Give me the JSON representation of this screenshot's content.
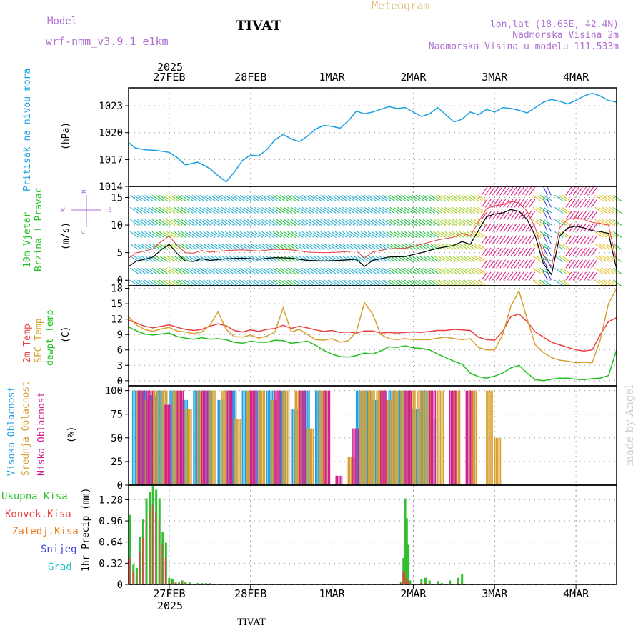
{
  "header": {
    "model_label": "Model",
    "model_name": "wrf-nmm_v3.9.1 e1km",
    "station": "TIVAT",
    "meteogram": "Meteogram",
    "lonlat": "lon,lat (18.65E, 42.4N)",
    "elevation": "Nadmorska Visina 2m",
    "model_elevation": "Nadmorska Visina u modelu 111.533m",
    "top_year": "2025",
    "bottom_year": "2025",
    "footer_station": "TIVAT",
    "credit": "made by Angel"
  },
  "colors": {
    "pressure": "#1aa0e0",
    "temp2m": "#e84040",
    "sfc": "#d8a030",
    "dewpt": "#20c020",
    "high_cloud": "#20a0e0",
    "mid_cloud": "#d8a030",
    "low_cloud": "#d02090",
    "precip_total": "#30c030",
    "precip_conv": "#e84040",
    "precip_frz": "#f08020",
    "snow": "#4040e0",
    "hail": "#20c0c0",
    "model": "#b070d0",
    "meteogram": "#e0c080"
  },
  "chart_data": [
    {
      "type": "line",
      "panel": "pressure",
      "ylabel_side": "Pritisak na nivou mora",
      "ylabel": "(hPa)",
      "ylim": [
        1014,
        1025
      ],
      "yticks": [
        1014,
        1017,
        1020,
        1023
      ],
      "x_labels": [
        "27FEB",
        "28FEB",
        "1MAR",
        "2MAR",
        "3MAR",
        "4MAR"
      ],
      "x_days": [
        0,
        1,
        2,
        3,
        4,
        5
      ],
      "xlim": [
        -0.5,
        5.5
      ],
      "x": [
        -0.5,
        -0.42,
        -0.3,
        -0.15,
        0.0,
        0.1,
        0.2,
        0.35,
        0.5,
        0.6,
        0.7,
        0.8,
        0.9,
        1.0,
        1.1,
        1.2,
        1.3,
        1.4,
        1.5,
        1.6,
        1.7,
        1.8,
        1.9,
        2.0,
        2.1,
        2.2,
        2.3,
        2.4,
        2.5,
        2.6,
        2.7,
        2.8,
        2.9,
        3.0,
        3.1,
        3.2,
        3.3,
        3.4,
        3.5,
        3.6,
        3.7,
        3.8,
        3.9,
        4.0,
        4.1,
        4.2,
        4.3,
        4.4,
        4.5,
        4.6,
        4.7,
        4.8,
        4.9,
        5.0,
        5.1,
        5.2,
        5.3,
        5.4,
        5.5
      ],
      "values": [
        1018.9,
        1018.3,
        1018.1,
        1018.0,
        1017.8,
        1017.2,
        1016.4,
        1016.7,
        1016.0,
        1015.2,
        1014.5,
        1015.6,
        1016.9,
        1017.5,
        1017.4,
        1018.1,
        1019.2,
        1019.8,
        1019.3,
        1019.0,
        1019.6,
        1020.4,
        1020.8,
        1020.7,
        1020.5,
        1021.3,
        1022.4,
        1022.1,
        1022.3,
        1022.6,
        1022.9,
        1022.7,
        1022.8,
        1022.3,
        1021.8,
        1022.1,
        1022.8,
        1022.0,
        1021.2,
        1021.5,
        1022.3,
        1022.0,
        1022.6,
        1022.3,
        1022.8,
        1022.7,
        1022.5,
        1022.2,
        1022.8,
        1023.4,
        1023.7,
        1023.5,
        1023.2,
        1023.6,
        1024.1,
        1024.4,
        1024.1,
        1023.6,
        1023.4
      ]
    },
    {
      "type": "line",
      "panel": "wind",
      "ylabel_side": [
        "10m Vjetar",
        "Brzina i Pravac"
      ],
      "ylabel": "(m/s)",
      "compass": [
        "N",
        "E",
        "S",
        "W"
      ],
      "ylim": [
        -1,
        17
      ],
      "yticks": [
        0,
        5,
        10,
        15
      ],
      "xlim": [
        -0.5,
        5.5
      ],
      "x": [
        -0.5,
        -0.4,
        -0.3,
        -0.2,
        -0.1,
        0.0,
        0.1,
        0.2,
        0.3,
        0.4,
        0.5,
        0.7,
        0.9,
        1.1,
        1.3,
        1.5,
        1.7,
        1.9,
        2.1,
        2.3,
        2.4,
        2.5,
        2.7,
        2.9,
        3.1,
        3.3,
        3.5,
        3.6,
        3.7,
        3.8,
        3.9,
        4.0,
        4.1,
        4.2,
        4.3,
        4.4,
        4.5,
        4.6,
        4.7,
        4.8,
        4.9,
        5.0,
        5.1,
        5.2,
        5.3,
        5.4,
        5.5
      ],
      "values": [
        2.5,
        3.5,
        3.8,
        4.2,
        5.5,
        6.5,
        4.8,
        3.5,
        3.4,
        3.9,
        3.6,
        3.9,
        4.0,
        3.8,
        4.1,
        4.0,
        3.6,
        3.5,
        3.6,
        3.8,
        2.5,
        3.6,
        4.2,
        4.3,
        5.0,
        5.8,
        6.3,
        7.0,
        6.5,
        9.0,
        11.5,
        12.0,
        12.2,
        12.8,
        12.5,
        11.0,
        8.0,
        3.0,
        1.0,
        8.0,
        9.5,
        9.8,
        9.5,
        9.0,
        8.8,
        8.5,
        2.0
      ]
    },
    {
      "type": "line",
      "panel": "temperature",
      "ylabel_side": [
        "2m Temp",
        "SFC Temp",
        "dewpt Temp"
      ],
      "ylabel": "(C)",
      "ylim": [
        -1,
        18.5
      ],
      "yticks": [
        0,
        3,
        6,
        9,
        12,
        15,
        18
      ],
      "xlim": [
        -0.5,
        5.5
      ],
      "x": [
        -0.5,
        -0.4,
        -0.3,
        -0.2,
        -0.1,
        0.0,
        0.1,
        0.2,
        0.3,
        0.4,
        0.5,
        0.6,
        0.7,
        0.8,
        0.9,
        1.0,
        1.1,
        1.2,
        1.3,
        1.4,
        1.5,
        1.6,
        1.7,
        1.8,
        1.9,
        2.0,
        2.1,
        2.2,
        2.3,
        2.4,
        2.5,
        2.6,
        2.7,
        2.8,
        2.9,
        3.0,
        3.1,
        3.2,
        3.3,
        3.4,
        3.5,
        3.6,
        3.7,
        3.8,
        3.9,
        4.0,
        4.1,
        4.2,
        4.3,
        4.4,
        4.5,
        4.6,
        4.7,
        4.8,
        4.9,
        5.0,
        5.1,
        5.2,
        5.3,
        5.4,
        5.5
      ],
      "series": [
        {
          "name": "2m Temp",
          "color_key": "temp2m",
          "values": [
            11.8,
            11.2,
            10.6,
            10.3,
            10.6,
            10.9,
            10.4,
            10.0,
            9.8,
            10.0,
            10.6,
            11.1,
            10.7,
            9.8,
            9.5,
            9.9,
            9.6,
            10.0,
            10.2,
            10.8,
            10.2,
            10.6,
            10.3,
            9.9,
            9.6,
            9.8,
            9.4,
            9.5,
            9.3,
            9.7,
            9.7,
            9.3,
            9.4,
            9.3,
            9.4,
            9.5,
            9.4,
            9.6,
            9.8,
            9.8,
            10.0,
            9.9,
            9.8,
            8.5,
            8.0,
            7.9,
            9.6,
            12.5,
            13.0,
            11.5,
            9.5,
            8.5,
            7.5,
            7.0,
            6.5,
            6.0,
            5.8,
            6.0,
            9.0,
            11.5,
            12.3
          ]
        },
        {
          "name": "SFC Temp",
          "color_key": "sfc",
          "values": [
            12.5,
            10.8,
            10.0,
            9.6,
            10.1,
            10.4,
            9.7,
            9.5,
            9.2,
            9.5,
            10.8,
            13.4,
            10.0,
            8.6,
            8.5,
            8.9,
            8.3,
            8.7,
            9.5,
            14.2,
            9.5,
            10.0,
            9.0,
            8.0,
            7.9,
            8.2,
            7.5,
            7.8,
            9.5,
            15.2,
            13.0,
            9.0,
            8.2,
            8.0,
            8.2,
            8.0,
            8.0,
            8.0,
            8.3,
            8.5,
            8.2,
            8.0,
            8.2,
            6.5,
            6.0,
            6.0,
            9.0,
            14.5,
            17.5,
            12.0,
            7.0,
            5.5,
            4.5,
            4.0,
            3.8,
            3.5,
            3.6,
            3.5,
            8.0,
            15.0,
            18.0
          ]
        },
        {
          "name": "dewpt Temp",
          "color_key": "dewpt",
          "values": [
            10.5,
            9.7,
            9.1,
            8.9,
            9.1,
            9.3,
            8.6,
            8.3,
            8.1,
            8.4,
            8.1,
            8.2,
            8.0,
            7.5,
            7.3,
            7.7,
            7.5,
            7.5,
            7.9,
            7.8,
            7.3,
            7.5,
            7.7,
            6.9,
            5.9,
            5.2,
            4.7,
            4.6,
            4.9,
            5.4,
            5.2,
            5.8,
            6.6,
            6.5,
            6.8,
            6.4,
            6.3,
            6.0,
            5.2,
            4.5,
            3.8,
            3.2,
            1.5,
            0.8,
            0.5,
            0.9,
            1.5,
            2.5,
            3.0,
            1.5,
            0.2,
            0.0,
            0.3,
            0.5,
            0.5,
            0.3,
            0.2,
            0.4,
            0.5,
            1.0,
            6.0
          ]
        }
      ]
    },
    {
      "type": "bar",
      "panel": "clouds",
      "ylabel_side": [
        "Visoka Oblacnost",
        "Srednja Oblacnost",
        "Niska Oblacnost"
      ],
      "ylabel": "(%)",
      "ylim": [
        0,
        105
      ],
      "yticks": [
        0,
        25,
        50,
        75,
        100
      ],
      "xlim": [
        -0.5,
        5.5
      ],
      "series": [
        {
          "name": "Visoka Oblacnost",
          "color_key": "high_cloud",
          "x": [
            -0.45,
            -0.35,
            -0.25,
            -0.15,
            0.0,
            0.15,
            0.3,
            0.45,
            0.6,
            0.75,
            0.9,
            1.05,
            1.2,
            1.35,
            1.5,
            1.65,
            1.8,
            2.3,
            2.4,
            2.5,
            2.6,
            2.7,
            2.8,
            2.9,
            3.0,
            3.1,
            3.2
          ],
          "values": [
            100,
            100,
            95,
            100,
            100,
            90,
            100,
            100,
            90,
            100,
            100,
            100,
            100,
            100,
            80,
            100,
            100,
            100,
            100,
            90,
            100,
            100,
            100,
            100,
            80,
            100,
            70
          ]
        },
        {
          "name": "Srednja Oblacnost",
          "color_key": "mid_cloud",
          "x": [
            -0.4,
            -0.3,
            -0.2,
            -0.1,
            0.05,
            0.2,
            0.35,
            0.5,
            0.65,
            0.8,
            0.95,
            1.1,
            1.25,
            1.4,
            1.55,
            1.7,
            1.85,
            2.2,
            2.35,
            2.45,
            2.55,
            2.65,
            2.75,
            2.85,
            2.95,
            3.05,
            3.15,
            3.3,
            3.5,
            3.7,
            3.9,
            4.0
          ],
          "values": [
            100,
            90,
            100,
            100,
            100,
            80,
            100,
            100,
            100,
            70,
            100,
            100,
            90,
            100,
            100,
            60,
            100,
            30,
            100,
            100,
            100,
            90,
            100,
            100,
            100,
            100,
            100,
            100,
            100,
            100,
            100,
            50
          ]
        },
        {
          "name": "Niska Oblacnost",
          "color_key": "low_cloud",
          "x": [
            -0.38,
            -0.28,
            -0.05,
            0.1,
            0.4,
            0.7,
            1.0,
            1.3,
            1.6,
            1.9,
            2.05,
            2.25,
            2.6,
            2.9,
            3.2,
            3.45,
            3.65
          ],
          "values": [
            100,
            100,
            85,
            100,
            100,
            100,
            100,
            100,
            100,
            100,
            10,
            60,
            100,
            100,
            100,
            100,
            100
          ]
        }
      ]
    },
    {
      "type": "bar",
      "panel": "precip",
      "ylabel": "1hr Precip (mm)",
      "legend": [
        "Ukupna Kisa",
        "Konvek.Kisa",
        "Zaledj.Kisa",
        "Snijeg",
        "Grad"
      ],
      "ylim": [
        0,
        1.5
      ],
      "yticks": [
        0,
        0.32,
        0.64,
        0.96,
        1.28
      ],
      "ytick_labels": [
        "0",
        "0.32",
        "0.64",
        "0.96",
        "1.28"
      ],
      "xlim": [
        -0.5,
        5.5
      ],
      "x": [
        -0.48,
        -0.44,
        -0.4,
        -0.36,
        -0.32,
        -0.28,
        -0.24,
        -0.2,
        -0.16,
        -0.12,
        -0.08,
        -0.04,
        0.0,
        0.04,
        0.08,
        0.12,
        0.16,
        0.2,
        0.25,
        0.35,
        0.4,
        0.45,
        0.5,
        2.85,
        2.88,
        2.9,
        2.92,
        2.94,
        2.96,
        3.1,
        3.15,
        3.2,
        3.3,
        3.35,
        3.45,
        3.55,
        3.6
      ],
      "values": [
        1.05,
        0.3,
        0.25,
        0.72,
        0.98,
        1.3,
        1.4,
        1.49,
        1.43,
        1.3,
        0.8,
        0.63,
        0.1,
        0.08,
        0.03,
        0.03,
        0.06,
        0.04,
        0.03,
        0.02,
        0.02,
        0.02,
        0.02,
        0.04,
        0.4,
        1.3,
        1.0,
        0.6,
        0.06,
        0.08,
        0.1,
        0.06,
        0.05,
        0.02,
        0.06,
        0.1,
        0.15
      ],
      "conv_values": [
        0.4,
        0.2,
        0.15,
        0.5,
        0.7,
        1.0,
        1.1,
        1.2,
        1.1,
        1.0,
        0.6,
        0.4,
        0.06,
        0.04,
        0.02,
        0.02,
        0.03,
        0.02,
        0.01,
        0.01,
        0.01,
        0.01,
        0.01,
        0.02,
        0.2,
        0.2,
        0.1,
        0.05,
        0.02,
        0.02,
        0.02,
        0.02,
        0.01,
        0.01,
        0.02,
        0.02,
        0.02
      ]
    }
  ]
}
